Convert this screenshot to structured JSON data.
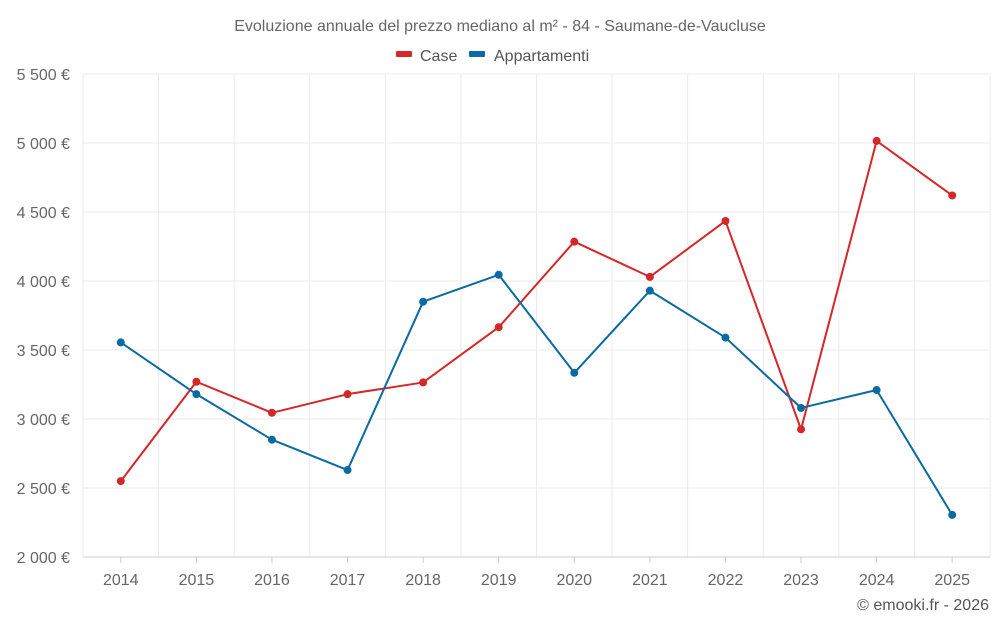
{
  "chart_data": {
    "type": "line",
    "title": "Evoluzione annuale del prezzo mediano al m² - 84 - Saumane-de-Vaucluse",
    "categories": [
      "2014",
      "2015",
      "2016",
      "2017",
      "2018",
      "2019",
      "2020",
      "2021",
      "2022",
      "2023",
      "2024",
      "2025"
    ],
    "series": [
      {
        "name": "Case",
        "color": "#d62728",
        "values": [
          2550,
          3270,
          3045,
          3180,
          3265,
          3665,
          4285,
          4030,
          4435,
          2925,
          5015,
          4620
        ]
      },
      {
        "name": "Appartamenti",
        "color": "#0a6aa1",
        "values": [
          3555,
          3180,
          2850,
          2630,
          3850,
          4045,
          3335,
          3930,
          3590,
          3080,
          3210,
          2305
        ]
      }
    ],
    "ylim": [
      2000,
      5500
    ],
    "yticks": [
      2000,
      2500,
      3000,
      3500,
      4000,
      4500,
      5000,
      5500
    ],
    "ytick_labels": [
      "2 000 €",
      "2 500 €",
      "3 000 €",
      "3 500 €",
      "4 000 €",
      "4 500 €",
      "5 000 €",
      "5 500 €"
    ],
    "grid": true,
    "legend_position": "top-center"
  },
  "credit": "© emooki.fr - 2026"
}
